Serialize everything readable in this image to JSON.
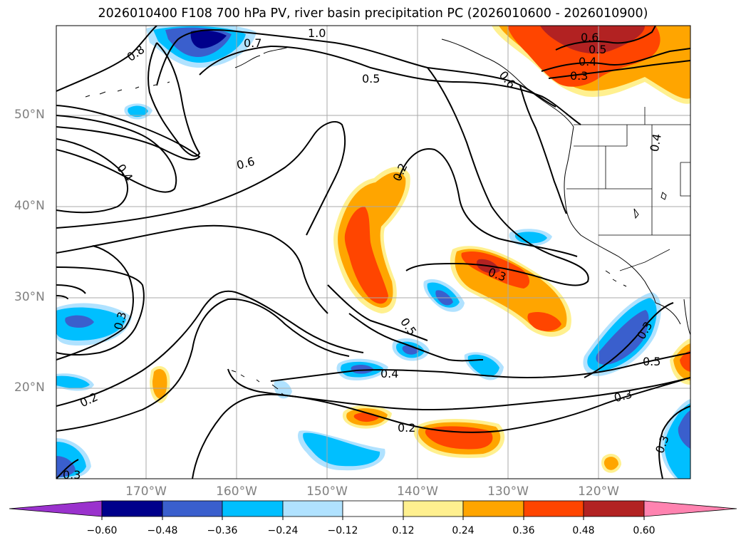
{
  "title": "2026010400 F108 700 hPa PV, river basin precipitation PC (2026010600 - 2026010900)",
  "lat_ticks": [
    "50°N",
    "40°N",
    "30°N",
    "20°N"
  ],
  "lon_ticks": [
    "170°W",
    "160°W",
    "150°W",
    "140°W",
    "130°W",
    "120°W"
  ],
  "contour_labels": [
    "1.0",
    "0.7",
    "0.8",
    "0.6",
    "0.5",
    "0.4",
    "0.3",
    "0.6",
    "0.5",
    "0.4",
    "0.2",
    "0.6",
    "0.4",
    "0.3",
    "0.5",
    "0.3",
    "0.4",
    "0.2",
    "0.3",
    "0.5",
    "0.3",
    "0.2",
    "0.3",
    "0.3"
  ],
  "colorbar": {
    "ticks": [
      "−0.60",
      "−0.48",
      "−0.36",
      "−0.24",
      "−0.12",
      "0.12",
      "0.24",
      "0.36",
      "0.48",
      "0.60"
    ],
    "colors": [
      "#9a32cd",
      "#00008b",
      "#3a5fcd",
      "#00bfff",
      "#b0e2ff",
      "#ffffff",
      "#fff08f",
      "#ffa500",
      "#ff4500",
      "#b22222",
      "#ff83b0"
    ]
  }
}
